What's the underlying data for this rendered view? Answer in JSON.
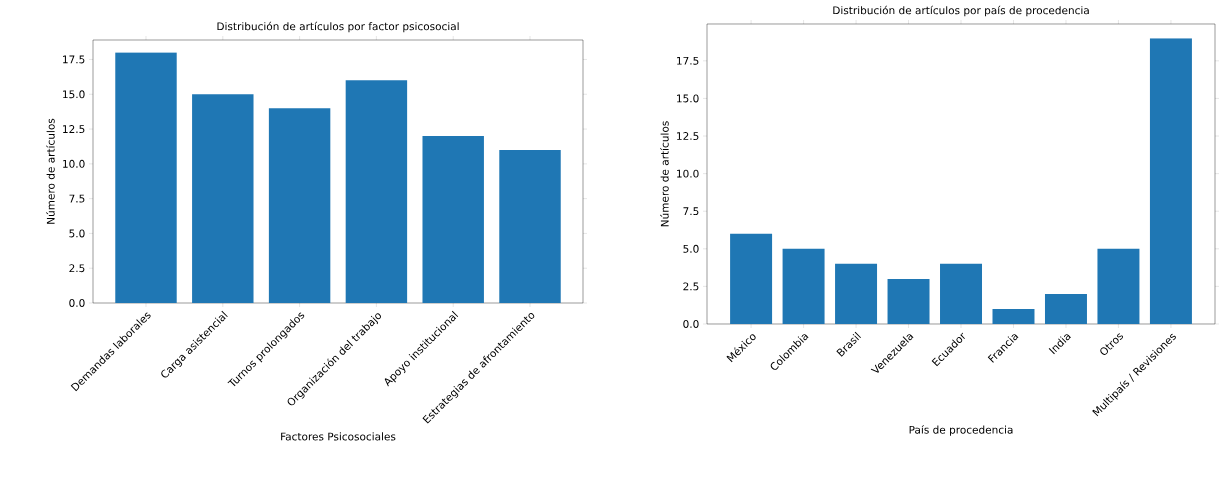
{
  "chart_data": [
    {
      "type": "bar",
      "title": "Distribución de artículos por factor psicosocial",
      "xlabel": "Factores Psicosociales",
      "ylabel": "Número de artículos",
      "categories": [
        "Demandas laborales",
        "Carga asistencial",
        "Turnos prolongados",
        "Organización del trabajo",
        "Apoyo institucional",
        "Estrategias de afrontamiento"
      ],
      "values": [
        18,
        15,
        14,
        16,
        12,
        11
      ],
      "color": "#1f77b4",
      "ylim": [
        0,
        18.9
      ],
      "yticks": [
        {
          "value": 0,
          "label": "0.0"
        },
        {
          "value": 2.5,
          "label": "2.5"
        },
        {
          "value": 5,
          "label": "5.0"
        },
        {
          "value": 7.5,
          "label": "7.5"
        },
        {
          "value": 10,
          "label": "10.0"
        },
        {
          "value": 12.5,
          "label": "12.5"
        },
        {
          "value": 15,
          "label": "15.0"
        },
        {
          "value": 17.5,
          "label": "17.5"
        }
      ]
    },
    {
      "type": "bar",
      "title": "Distribución de artículos por país de procedencia",
      "xlabel": "País de procedencia",
      "ylabel": "Número de artículos",
      "categories": [
        "México",
        "Colombia",
        "Brasil",
        "Venezuela",
        "Ecuador",
        "Francia",
        "India",
        "Otros",
        "Multipaís / Revisiones"
      ],
      "values": [
        6,
        5,
        4,
        3,
        4,
        1,
        2,
        5,
        19
      ],
      "color": "#1f77b4",
      "ylim": [
        0,
        19.95
      ],
      "yticks": [
        {
          "value": 0,
          "label": "0.0"
        },
        {
          "value": 2.5,
          "label": "2.5"
        },
        {
          "value": 5,
          "label": "5.0"
        },
        {
          "value": 7.5,
          "label": "7.5"
        },
        {
          "value": 10,
          "label": "10.0"
        },
        {
          "value": 12.5,
          "label": "12.5"
        },
        {
          "value": 15,
          "label": "15.0"
        },
        {
          "value": 17.5,
          "label": "17.5"
        }
      ]
    }
  ]
}
